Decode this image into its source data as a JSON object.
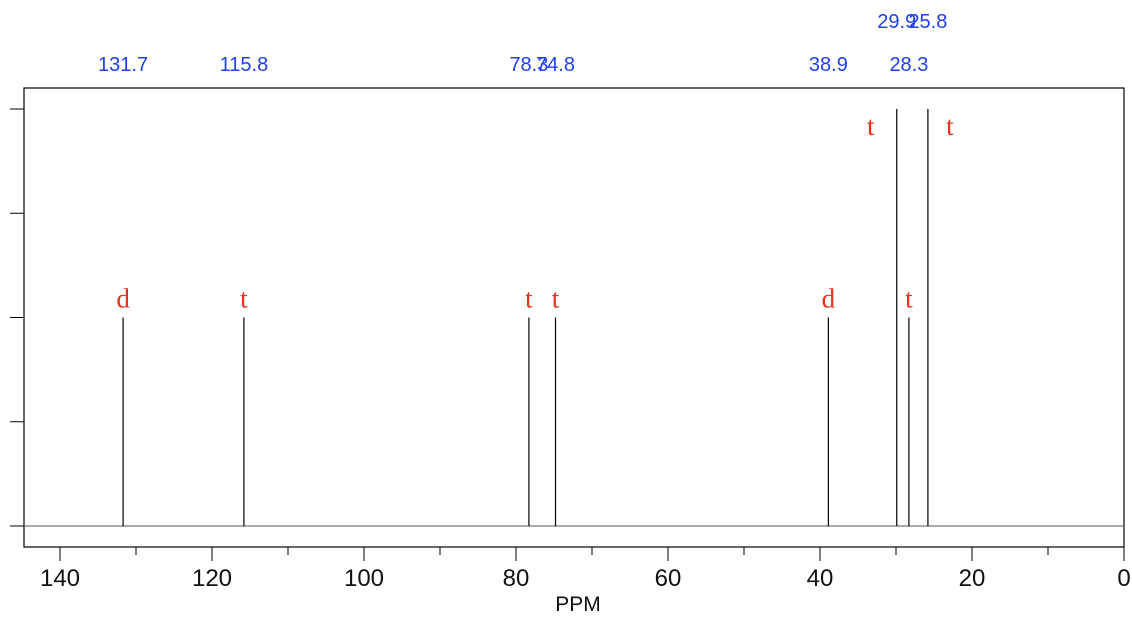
{
  "chart_data": {
    "type": "bar",
    "xlabel": "PPM",
    "ylabel": "",
    "xlim": [
      145,
      0
    ],
    "ylim": [
      0,
      2
    ],
    "x_ticks": [
      140,
      120,
      100,
      80,
      60,
      40,
      20,
      0
    ],
    "x_minor_ticks": [
      130,
      110,
      90,
      70,
      50,
      30,
      10
    ],
    "y_ticks": [
      0,
      0.5,
      1,
      1.5,
      2
    ],
    "grid": false,
    "peaks": [
      {
        "ppm": 131.7,
        "ppm_label": "131.7",
        "multiplicity": "d",
        "intensity": 1
      },
      {
        "ppm": 115.8,
        "ppm_label": "115.8",
        "multiplicity": "t",
        "intensity": 1
      },
      {
        "ppm": 78.3,
        "ppm_label": "78.3",
        "multiplicity": "t",
        "intensity": 1
      },
      {
        "ppm": 74.8,
        "ppm_label": "74.8",
        "multiplicity": "t",
        "intensity": 1
      },
      {
        "ppm": 38.9,
        "ppm_label": "38.9",
        "multiplicity": "d",
        "intensity": 1
      },
      {
        "ppm": 29.9,
        "ppm_label": "29.9",
        "multiplicity": "t",
        "intensity": 2
      },
      {
        "ppm": 28.3,
        "ppm_label": "28.3",
        "multiplicity": "t",
        "intensity": 1
      },
      {
        "ppm": 25.8,
        "ppm_label": "25.8",
        "multiplicity": "t",
        "intensity": 2
      }
    ],
    "colors": {
      "ppm_label": "#1f3ff0",
      "multiplicity": "#e8301c",
      "line": "#000000"
    }
  }
}
